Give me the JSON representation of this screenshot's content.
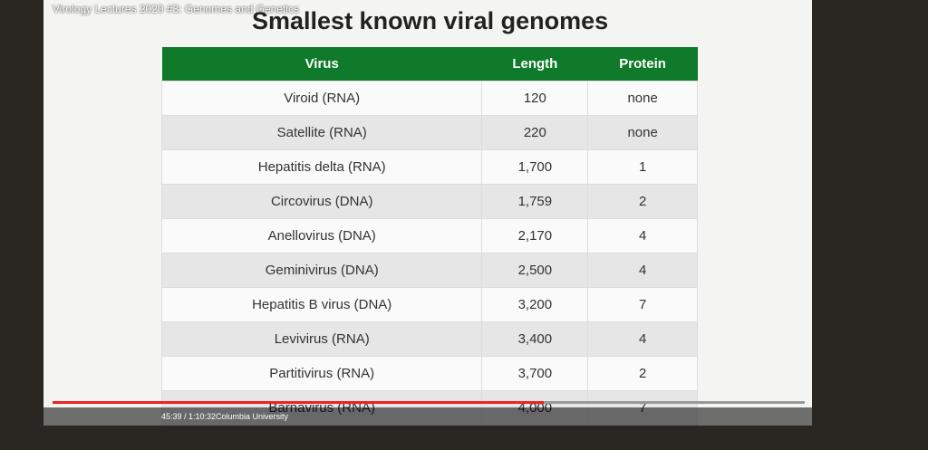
{
  "video": {
    "title": "Virology Lectures 2020 #3: Genomes and Genetics",
    "time": "45:39 / 1:10:32",
    "channel": "Columbia University"
  },
  "slide": {
    "title": "Smallest known viral genomes"
  },
  "table": {
    "header": [
      "Virus",
      "Length",
      "Protein"
    ],
    "rows": [
      [
        "Viroid (RNA)",
        "120",
        "none"
      ],
      [
        "Satellite (RNA)",
        "220",
        "none"
      ],
      [
        "Hepatitis delta (RNA)",
        "1,700",
        "1"
      ],
      [
        "Circovirus (DNA)",
        "1,759",
        "2"
      ],
      [
        "Anellovirus (DNA)",
        "2,170",
        "4"
      ],
      [
        "Geminivirus (DNA)",
        "2,500",
        "4"
      ],
      [
        "Hepatitis B virus (DNA)",
        "3,200",
        "7"
      ],
      [
        "Levivirus (RNA)",
        "3,400",
        "4"
      ],
      [
        "Partitivirus (RNA)",
        "3,700",
        "2"
      ],
      [
        "Barnavirus (RNA)",
        "4,000",
        "7"
      ]
    ]
  }
}
